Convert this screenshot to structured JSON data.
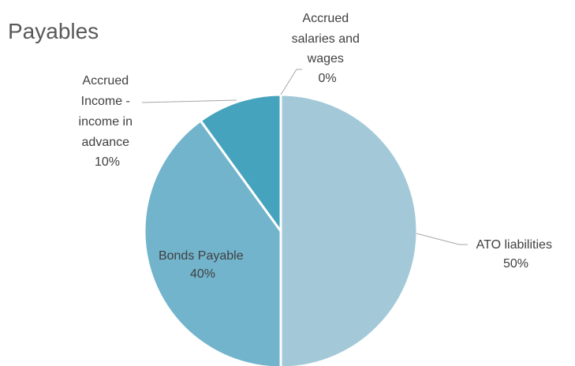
{
  "chart_data": {
    "type": "pie",
    "title": "Payables",
    "slices": [
      {
        "name": "ATO liabilities",
        "value": 50,
        "label": "50%",
        "color": "#a3c9d9"
      },
      {
        "name": "Bonds Payable",
        "value": 40,
        "label": "40%",
        "color": "#72b4cc"
      },
      {
        "name": "Accrued Income - income in advance",
        "value": 10,
        "label": "10%",
        "color": "#46a3bd"
      },
      {
        "name": "Accrued salaries and wages",
        "value": 0,
        "label": "0%",
        "color": "#2e8aa8"
      }
    ],
    "legend": "none"
  }
}
